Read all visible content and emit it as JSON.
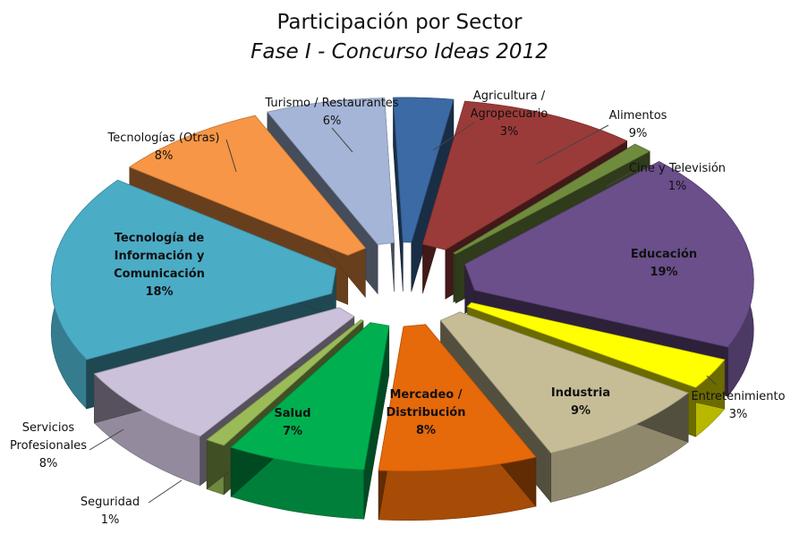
{
  "chart_data": {
    "type": "pie",
    "title": "Participación por Sector",
    "subtitle": "Fase I - Concurso Ideas 2012",
    "style": "3d-exploded",
    "slices": [
      {
        "label": "Agricultura / Agropecuario",
        "lines": [
          "Agricultura /",
          "Agropecuario"
        ],
        "value": 3,
        "value_label": "3%",
        "color": "#3c6aa5"
      },
      {
        "label": "Alimentos",
        "lines": [
          "Alimentos"
        ],
        "value": 9,
        "value_label": "9%",
        "color": "#9b3b39"
      },
      {
        "label": "Cine y Televisión",
        "lines": [
          "Cine y Televisión"
        ],
        "value": 1,
        "value_label": "1%",
        "color": "#6f8c3e"
      },
      {
        "label": "Educación",
        "lines": [
          "Educación"
        ],
        "value": 19,
        "value_label": "19%",
        "color": "#6a4f8b"
      },
      {
        "label": "Entretenimiento",
        "lines": [
          "Entretenimiento"
        ],
        "value": 3,
        "value_label": "3%",
        "color": "#ffff00"
      },
      {
        "label": "Industria",
        "lines": [
          "Industria"
        ],
        "value": 9,
        "value_label": "9%",
        "color": "#c6bd97"
      },
      {
        "label": "Mercadeo / Distribución",
        "lines": [
          "Mercadeo /",
          "Distribución"
        ],
        "value": 8,
        "value_label": "8%",
        "color": "#e6690a"
      },
      {
        "label": "Salud",
        "lines": [
          "Salud"
        ],
        "value": 7,
        "value_label": "7%",
        "color": "#00b050"
      },
      {
        "label": "Seguridad",
        "lines": [
          "Seguridad"
        ],
        "value": 1,
        "value_label": "1%",
        "color": "#9bbb59"
      },
      {
        "label": "Servicios Profesionales",
        "lines": [
          "Servicios",
          "Profesionales"
        ],
        "value": 8,
        "value_label": "8%",
        "color": "#ccc1da"
      },
      {
        "label": "Tecnología de Información y Comunicación",
        "lines": [
          "Tecnología de",
          "Información y",
          "Comunicación"
        ],
        "value": 18,
        "value_label": "18%",
        "color": "#4bacc6"
      },
      {
        "label": "Tecnologías (Otras)",
        "lines": [
          "Tecnologías (Otras)"
        ],
        "value": 8,
        "value_label": "8%",
        "color": "#f79646"
      },
      {
        "label": "Turismo / Restaurantes",
        "lines": [
          "Turismo / Restaurantes"
        ],
        "value": 6,
        "value_label": "6%",
        "color": "#a5b5d7"
      }
    ]
  }
}
